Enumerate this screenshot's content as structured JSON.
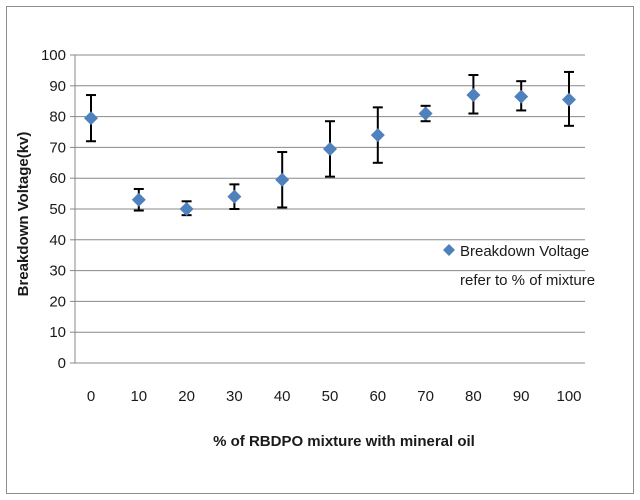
{
  "chart_data": {
    "type": "scatter",
    "xlabel": "% of RBDPO mixture with mineral oil",
    "ylabel": "Breakdown Voltage(kv)",
    "xlim": [
      0,
      100
    ],
    "ylim": [
      0,
      100
    ],
    "x_ticks": [
      "0",
      "10",
      "20",
      "30",
      "40",
      "50",
      "60",
      "70",
      "80",
      "90",
      "100"
    ],
    "y_ticks": [
      "0",
      "10",
      "20",
      "30",
      "40",
      "50",
      "60",
      "70",
      "80",
      "90",
      "100"
    ],
    "grid": "horizontal",
    "legend_position": "right",
    "series": [
      {
        "name": "Breakdown Voltage refer to % of mixture",
        "legend_lines": [
          "Breakdown Voltage",
          "refer to % of mixture"
        ],
        "color": "#4F81BD",
        "marker": "diamond",
        "x": [
          0,
          10,
          20,
          30,
          40,
          50,
          60,
          70,
          80,
          90,
          100
        ],
        "y": [
          79.5,
          53,
          50,
          54,
          59.5,
          69.5,
          74,
          81,
          87,
          86.5,
          85.5
        ],
        "err_low": [
          72,
          49.5,
          48,
          50,
          50.5,
          60.5,
          65,
          78.5,
          81,
          82,
          77
        ],
        "err_high": [
          87,
          56.5,
          52.5,
          58,
          68.5,
          78.5,
          83,
          83.5,
          93.5,
          91.5,
          94.5
        ]
      }
    ]
  }
}
